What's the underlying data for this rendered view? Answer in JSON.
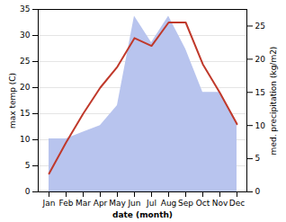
{
  "chart_data": {
    "type": "line",
    "xlabel": "date (month)",
    "ylabel": "max temp (C)",
    "y2label": "med. precipitation (kg/m2)",
    "categories": [
      "Jan",
      "Feb",
      "Mar",
      "Apr",
      "May",
      "Jun",
      "Jul",
      "Aug",
      "Sep",
      "Oct",
      "Nov",
      "Dec"
    ],
    "series": [
      {
        "type": "area",
        "axis": "y2",
        "color": "#b8c4ee",
        "values": [
          8.0,
          8.0,
          9.0,
          10.0,
          13.0,
          26.5,
          22.5,
          26.5,
          21.5,
          15.0,
          15.0,
          10.5
        ]
      },
      {
        "type": "line",
        "color": "#c0392b",
        "values": [
          3.5,
          9.5,
          15.0,
          20.0,
          24.0,
          29.5,
          28.0,
          32.5,
          32.5,
          24.5,
          19.0,
          13.0
        ]
      }
    ],
    "ylim": [
      0,
      35
    ],
    "yticks": [
      0,
      5,
      10,
      15,
      20,
      25,
      30,
      35
    ],
    "y2lim": [
      0,
      27.5
    ],
    "y2ticks": [
      0,
      5,
      10,
      15,
      20,
      25
    ],
    "grid": true
  }
}
